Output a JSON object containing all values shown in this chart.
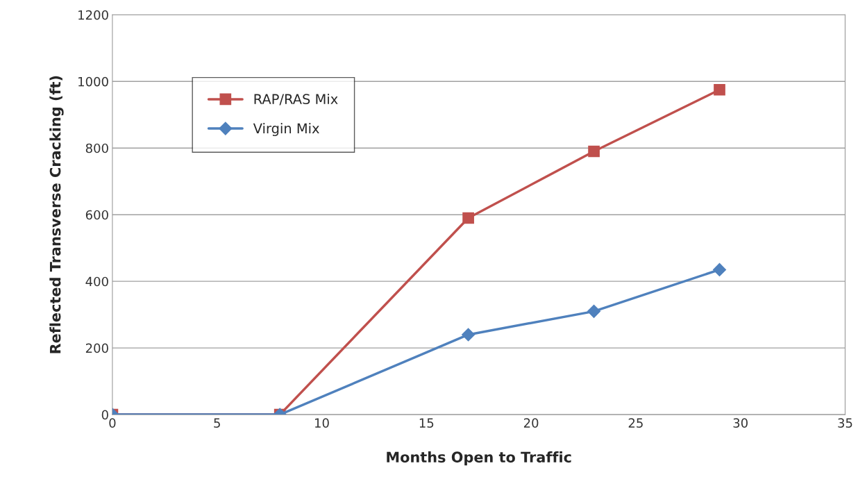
{
  "chart_data": {
    "type": "line",
    "xlabel": "Months Open to Traffic",
    "ylabel": "Reflected Transverse Cracking (ft)",
    "x": [
      0,
      8,
      17,
      23,
      29
    ],
    "series": [
      {
        "name": "RAP/RAS Mix",
        "color": "#c0504d",
        "marker": "square",
        "values": [
          0,
          0,
          590,
          790,
          975
        ]
      },
      {
        "name": "Virgin Mix",
        "color": "#4f81bd",
        "marker": "diamond",
        "values": [
          0,
          0,
          240,
          310,
          435
        ]
      }
    ],
    "xlim": [
      0,
      35
    ],
    "xticks": [
      0,
      5,
      10,
      15,
      20,
      25,
      30,
      35
    ],
    "ylim": [
      0,
      1200
    ],
    "yticks": [
      0,
      200,
      400,
      600,
      800,
      1000,
      1200
    ],
    "grid": "y",
    "legend": "top left",
    "line_style": "solid"
  }
}
